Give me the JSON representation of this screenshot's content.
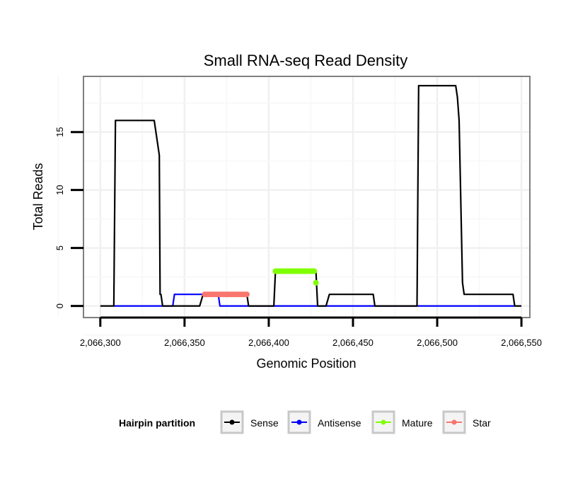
{
  "chart_data": {
    "type": "line",
    "title": "Small RNA-seq Read Density",
    "xlabel": "Genomic Position",
    "ylabel": "Total Reads",
    "xlim": [
      2066290,
      2066555
    ],
    "ylim": [
      -1,
      19.8
    ],
    "x_ticks": [
      2066300,
      2066350,
      2066400,
      2066450,
      2066500,
      2066550
    ],
    "x_tick_labels": [
      "2,066,300",
      "2,066,350",
      "2,066,400",
      "2,066,450",
      "2,066,500",
      "2,066,550"
    ],
    "y_ticks": [
      0,
      5,
      10,
      15
    ],
    "y_tick_labels": [
      "0",
      "5",
      "10",
      "15"
    ],
    "grid": true,
    "legend": {
      "title": "Hairpin partition",
      "placement": "bottom",
      "entries": [
        "Sense",
        "Antisense",
        "Mature",
        "Star"
      ]
    },
    "series": [
      {
        "name": "Sense",
        "color": "#000000",
        "style": "line",
        "x": [
          2066300,
          2066308,
          2066309,
          2066332,
          2066335,
          2066335.5,
          2066336,
          2066337,
          2066344,
          2066359,
          2066361,
          2066362,
          2066387,
          2066388,
          2066403,
          2066404,
          2066405,
          2066428,
          2066429,
          2066434,
          2066436,
          2066462,
          2066463,
          2066488,
          2066489,
          2066511,
          2066512,
          2066513,
          2066515,
          2066516,
          2066545,
          2066546,
          2066550
        ],
        "y": [
          0,
          0,
          16,
          16,
          13,
          1,
          1,
          0,
          0,
          0,
          1,
          1,
          1,
          0,
          0,
          3,
          3,
          3,
          0,
          0,
          1,
          1,
          0,
          0,
          19,
          19,
          18,
          16,
          2,
          1,
          1,
          0,
          0
        ]
      },
      {
        "name": "Antisense",
        "color": "#0000ff",
        "style": "line",
        "x": [
          2066308,
          2066343,
          2066344,
          2066360,
          2066370,
          2066371,
          2066387,
          2066388,
          2066546
        ],
        "y": [
          0,
          0,
          1,
          1,
          1,
          0,
          0,
          0,
          0
        ]
      },
      {
        "name": "Mature",
        "color": "#7fff00",
        "style": "points",
        "x": [
          2066404,
          2066405,
          2066406,
          2066407,
          2066408,
          2066409,
          2066410,
          2066411,
          2066412,
          2066413,
          2066414,
          2066415,
          2066416,
          2066417,
          2066418,
          2066419,
          2066420,
          2066421,
          2066422,
          2066423,
          2066424,
          2066425,
          2066426,
          2066427,
          2066428
        ],
        "y": [
          3,
          3,
          3,
          3,
          3,
          3,
          3,
          3,
          3,
          3,
          3,
          3,
          3,
          3,
          3,
          3,
          3,
          3,
          3,
          3,
          3,
          3,
          3,
          3,
          2
        ]
      },
      {
        "name": "Star",
        "color": "#f8766d",
        "style": "points",
        "x": [
          2066362,
          2066363,
          2066364,
          2066365,
          2066366,
          2066367,
          2066368,
          2066369,
          2066370,
          2066371,
          2066372,
          2066373,
          2066374,
          2066375,
          2066376,
          2066377,
          2066378,
          2066379,
          2066380,
          2066381,
          2066382,
          2066383,
          2066384,
          2066385,
          2066386,
          2066387
        ],
        "y": [
          1,
          1,
          1,
          1,
          1,
          1,
          1,
          1,
          1,
          1,
          1,
          1,
          1,
          1,
          1,
          1,
          1,
          1,
          1,
          1,
          1,
          1,
          1,
          1,
          1,
          1
        ]
      }
    ]
  }
}
